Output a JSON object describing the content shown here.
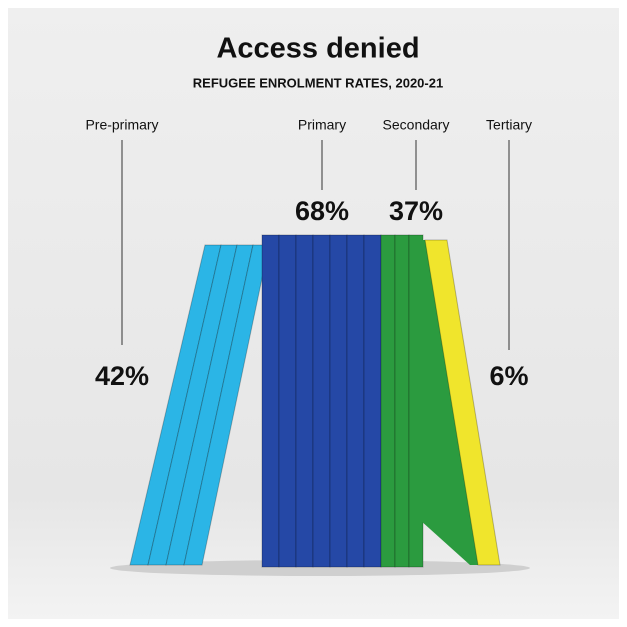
{
  "chart_data": {
    "type": "bar",
    "title": "Access denied",
    "subtitle": "REFUGEE ENROLMENT RATES, 2020-21",
    "categories": [
      "Pre-primary",
      "Primary",
      "Secondary",
      "Tertiary"
    ],
    "values": [
      42,
      68,
      37,
      6
    ],
    "value_labels": [
      "42%",
      "68%",
      "37%",
      "6%"
    ],
    "colors": [
      "#2bb5e6",
      "#2548a6",
      "#2b9b3f",
      "#f0e52c"
    ]
  }
}
